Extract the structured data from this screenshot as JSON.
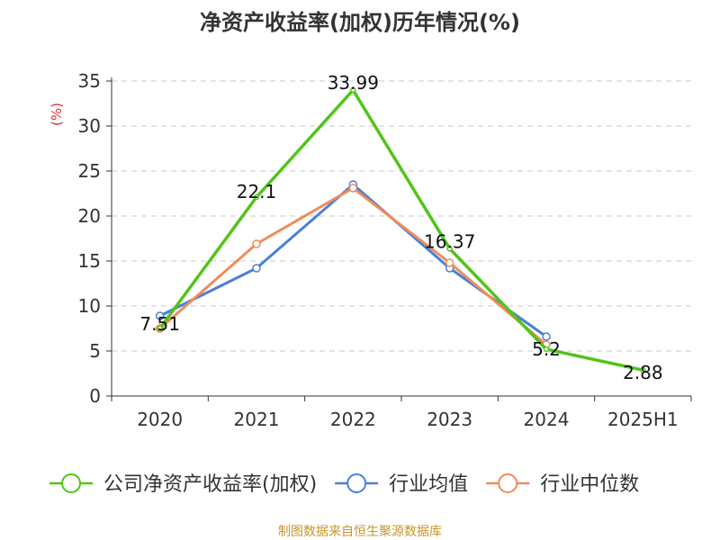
{
  "title": "净资产收益率(加权)历年情况(%)",
  "source": "制图数据来自恒生聚源数据库",
  "chart_data": {
    "type": "line",
    "title": "净资产收益率(加权)历年情况(%)",
    "ylabel": "(%)",
    "xlabel": "",
    "ylim": [
      0,
      35
    ],
    "yticks": [
      0,
      5,
      10,
      15,
      20,
      25,
      30,
      35
    ],
    "grid": true,
    "legend_position": "bottom",
    "categories": [
      "2020",
      "2021",
      "2022",
      "2023",
      "2024",
      "2025H1"
    ],
    "series": [
      {
        "name": "公司净资产收益率(加权)",
        "color": "#52c41a",
        "values": [
          7.51,
          22.1,
          33.99,
          16.37,
          5.2,
          2.88
        ],
        "labels": [
          "7.51",
          "22.1",
          "33.99",
          "16.37",
          "5.2",
          "2.88"
        ]
      },
      {
        "name": "行业均值",
        "color": "#4a7fd8",
        "values": [
          8.9,
          14.2,
          23.5,
          14.2,
          6.6,
          null
        ]
      },
      {
        "name": "行业中位数",
        "color": "#f08c5a",
        "values": [
          7.5,
          16.9,
          23.1,
          14.8,
          5.7,
          null
        ]
      }
    ]
  }
}
